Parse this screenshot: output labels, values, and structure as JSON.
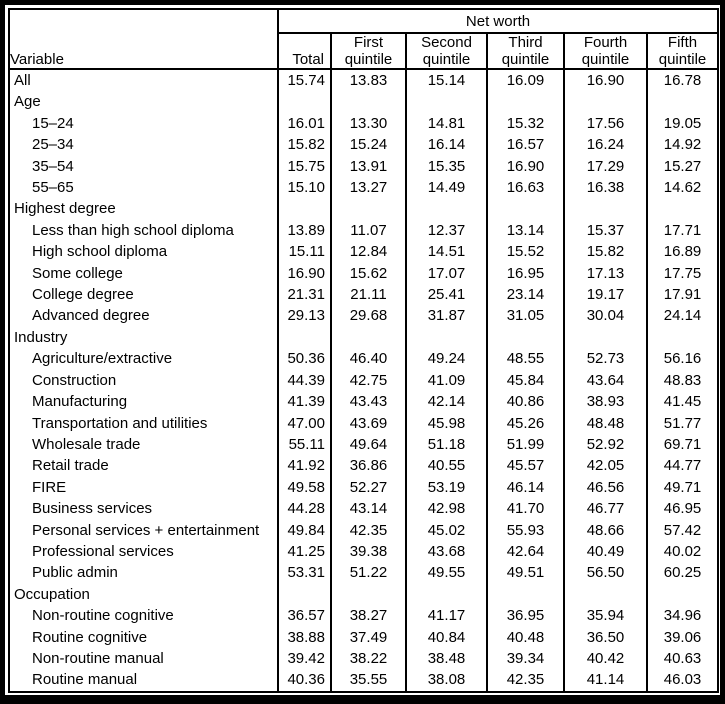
{
  "table": {
    "group_header": "Net worth",
    "variable_header": "Variable",
    "columns": [
      "Total",
      "First quintile",
      "Second quintile",
      "Third quintile",
      "Fourth quintile",
      "Fifth quintile"
    ],
    "rows": [
      {
        "label": "All",
        "indent": false,
        "values": [
          "15.74",
          "13.83",
          "15.14",
          "16.09",
          "16.90",
          "16.78"
        ]
      },
      {
        "label": "Age",
        "indent": false,
        "values": []
      },
      {
        "label": "15–24",
        "indent": true,
        "values": [
          "16.01",
          "13.30",
          "14.81",
          "15.32",
          "17.56",
          "19.05"
        ]
      },
      {
        "label": "25–34",
        "indent": true,
        "values": [
          "15.82",
          "15.24",
          "16.14",
          "16.57",
          "16.24",
          "14.92"
        ]
      },
      {
        "label": "35–54",
        "indent": true,
        "values": [
          "15.75",
          "13.91",
          "15.35",
          "16.90",
          "17.29",
          "15.27"
        ]
      },
      {
        "label": "55–65",
        "indent": true,
        "values": [
          "15.10",
          "13.27",
          "14.49",
          "16.63",
          "16.38",
          "14.62"
        ]
      },
      {
        "label": "Highest degree",
        "indent": false,
        "values": []
      },
      {
        "label": "Less than high school diploma",
        "indent": true,
        "values": [
          "13.89",
          "11.07",
          "12.37",
          "13.14",
          "15.37",
          "17.71"
        ]
      },
      {
        "label": "High school diploma",
        "indent": true,
        "values": [
          "15.11",
          "12.84",
          "14.51",
          "15.52",
          "15.82",
          "16.89"
        ]
      },
      {
        "label": "Some college",
        "indent": true,
        "values": [
          "16.90",
          "15.62",
          "17.07",
          "16.95",
          "17.13",
          "17.75"
        ]
      },
      {
        "label": "College degree",
        "indent": true,
        "values": [
          "21.31",
          "21.11",
          "25.41",
          "23.14",
          "19.17",
          "17.91"
        ]
      },
      {
        "label": "Advanced degree",
        "indent": true,
        "values": [
          "29.13",
          "29.68",
          "31.87",
          "31.05",
          "30.04",
          "24.14"
        ]
      },
      {
        "label": "Industry",
        "indent": false,
        "values": []
      },
      {
        "label": "Agriculture/extractive",
        "indent": true,
        "values": [
          "50.36",
          "46.40",
          "49.24",
          "48.55",
          "52.73",
          "56.16"
        ]
      },
      {
        "label": "Construction",
        "indent": true,
        "values": [
          "44.39",
          "42.75",
          "41.09",
          "45.84",
          "43.64",
          "48.83"
        ]
      },
      {
        "label": "Manufacturing",
        "indent": true,
        "values": [
          "41.39",
          "43.43",
          "42.14",
          "40.86",
          "38.93",
          "41.45"
        ]
      },
      {
        "label": "Transportation and utilities",
        "indent": true,
        "values": [
          "47.00",
          "43.69",
          "45.98",
          "45.26",
          "48.48",
          "51.77"
        ]
      },
      {
        "label": "Wholesale trade",
        "indent": true,
        "values": [
          "55.11",
          "49.64",
          "51.18",
          "51.99",
          "52.92",
          "69.71"
        ]
      },
      {
        "label": "Retail trade",
        "indent": true,
        "values": [
          "41.92",
          "36.86",
          "40.55",
          "45.57",
          "42.05",
          "44.77"
        ]
      },
      {
        "label": "FIRE",
        "indent": true,
        "values": [
          "49.58",
          "52.27",
          "53.19",
          "46.14",
          "46.56",
          "49.71"
        ]
      },
      {
        "label": "Business services",
        "indent": true,
        "values": [
          "44.28",
          "43.14",
          "42.98",
          "41.70",
          "46.77",
          "46.95"
        ]
      },
      {
        "label": "Personal services + entertainment",
        "indent": true,
        "values": [
          "49.84",
          "42.35",
          "45.02",
          "55.93",
          "48.66",
          "57.42"
        ]
      },
      {
        "label": "Professional services",
        "indent": true,
        "values": [
          "41.25",
          "39.38",
          "43.68",
          "42.64",
          "40.49",
          "40.02"
        ]
      },
      {
        "label": "Public admin",
        "indent": true,
        "values": [
          "53.31",
          "51.22",
          "49.55",
          "49.51",
          "56.50",
          "60.25"
        ]
      },
      {
        "label": "Occupation",
        "indent": false,
        "values": []
      },
      {
        "label": "Non-routine cognitive",
        "indent": true,
        "values": [
          "36.57",
          "38.27",
          "41.17",
          "36.95",
          "35.94",
          "34.96"
        ]
      },
      {
        "label": "Routine cognitive",
        "indent": true,
        "values": [
          "38.88",
          "37.49",
          "40.84",
          "40.48",
          "36.50",
          "39.06"
        ]
      },
      {
        "label": "Non-routine manual",
        "indent": true,
        "values": [
          "39.42",
          "38.22",
          "38.48",
          "39.34",
          "40.42",
          "40.63"
        ]
      },
      {
        "label": "Routine manual",
        "indent": true,
        "values": [
          "40.36",
          "35.55",
          "38.08",
          "42.35",
          "41.14",
          "46.03"
        ]
      }
    ],
    "colors": {
      "border": "#000000",
      "text": "#000000",
      "background": "#ffffff"
    }
  }
}
